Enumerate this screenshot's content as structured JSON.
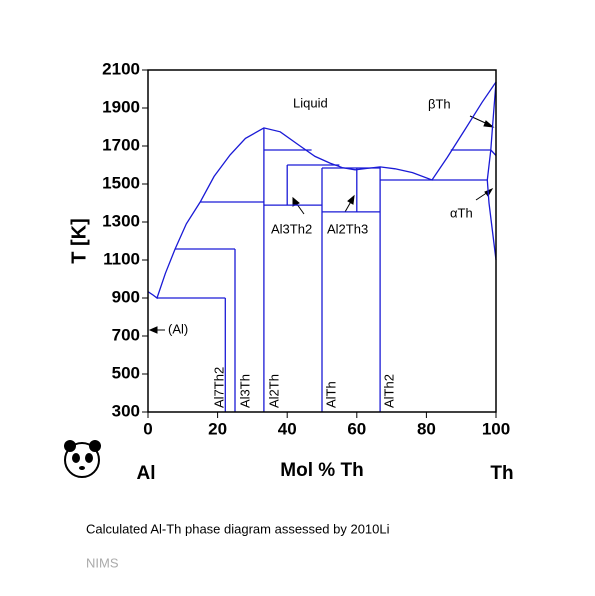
{
  "chart_data": {
    "type": "line",
    "xlabel": "Mol % Th",
    "ylabel": "T [K]",
    "component_labels": [
      "Al",
      "Th"
    ],
    "caption": "Calculated Al-Th phase diagram assessed by 2010Li",
    "source": "NIMS",
    "xlim": [
      0,
      100
    ],
    "ylim": [
      300,
      2100
    ],
    "xticks": [
      0,
      20,
      40,
      60,
      80,
      100
    ],
    "yticks": [
      300,
      500,
      700,
      900,
      1100,
      1300,
      1500,
      1700,
      1900,
      2100
    ],
    "color": "#1a1ad6",
    "annotations": [
      "Liquid",
      "βTh",
      "Al3Th2",
      "Al2Th3",
      "αTh",
      "(Al)",
      "Al7Th2",
      "Al3Th",
      "Al2Th",
      "AlTh",
      "AlTh2"
    ],
    "series": [
      {
        "x": [
          0,
          1.5,
          2.6,
          5,
          7.8,
          11,
          15,
          19,
          23.6,
          28,
          33.3,
          38,
          43.7,
          48,
          52.3,
          56,
          59.5,
          63,
          66.7,
          71,
          76,
          81.6,
          86,
          91,
          96,
          100
        ],
        "values": [
          933,
          915,
          900,
          1030,
          1158,
          1290,
          1405,
          1540,
          1653,
          1740,
          1795,
          1775,
          1700,
          1645,
          1610,
          1585,
          1575,
          1582,
          1590,
          1580,
          1560,
          1521,
          1640,
          1784,
          1930,
          2037
        ]
      },
      {
        "x": [
          100,
          99,
          98.5,
          97.5,
          98,
          99,
          100
        ],
        "values": [
          2037,
          1800,
          1679,
          1521,
          1400,
          1250,
          1100
        ]
      },
      {
        "x": [
          98.5,
          100
        ],
        "values": [
          1679,
          1650
        ]
      },
      {
        "x": [
          2.6,
          22.2
        ],
        "values": [
          900,
          900
        ]
      },
      {
        "x": [
          7.8,
          25
        ],
        "values": [
          1158,
          1158
        ]
      },
      {
        "x": [
          15,
          33.3
        ],
        "values": [
          1405,
          1405
        ]
      },
      {
        "x": [
          33.3,
          47
        ],
        "values": [
          1679,
          1679
        ]
      },
      {
        "x": [
          40,
          55
        ],
        "values": [
          1600,
          1600
        ]
      },
      {
        "x": [
          33.3,
          50
        ],
        "values": [
          1389,
          1389
        ]
      },
      {
        "x": [
          50,
          66.7
        ],
        "values": [
          1584,
          1584
        ]
      },
      {
        "x": [
          50,
          66.7
        ],
        "values": [
          1353,
          1353
        ]
      },
      {
        "x": [
          66.7,
          97.5
        ],
        "values": [
          1521,
          1521
        ]
      },
      {
        "x": [
          87,
          98.5
        ],
        "values": [
          1679,
          1679
        ]
      },
      {
        "x": [
          22.2,
          22.2
        ],
        "values": [
          300,
          900
        ]
      },
      {
        "x": [
          25,
          25
        ],
        "values": [
          300,
          1158
        ]
      },
      {
        "x": [
          33.3,
          33.3
        ],
        "values": [
          300,
          1795
        ]
      },
      {
        "x": [
          40,
          40
        ],
        "values": [
          1389,
          1600
        ]
      },
      {
        "x": [
          50,
          50
        ],
        "values": [
          300,
          1584
        ]
      },
      {
        "x": [
          60,
          60
        ],
        "values": [
          1353,
          1584
        ]
      },
      {
        "x": [
          66.7,
          66.7
        ],
        "values": [
          300,
          1590
        ]
      }
    ]
  }
}
